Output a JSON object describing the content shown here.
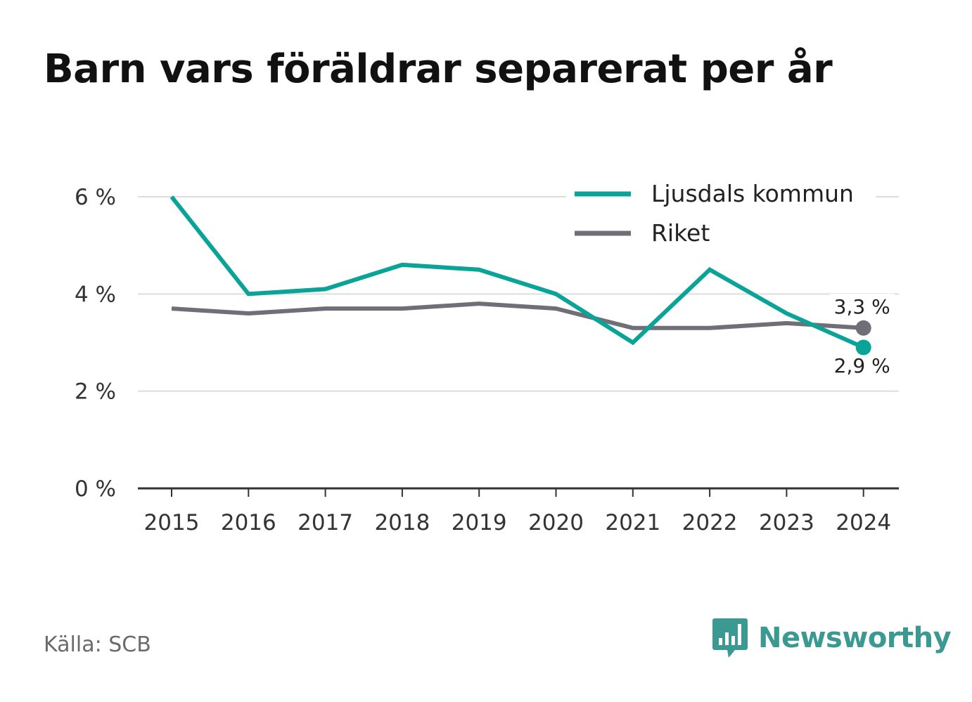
{
  "title": "Barn vars föräldrar separerat per år",
  "source": "Källa: SCB",
  "brand": {
    "name": "Newsworthy",
    "icon": "newsworthy-logo-icon"
  },
  "colors": {
    "ljusdal": "#0aa398",
    "riket": "#706f78",
    "grid": "#dddddd",
    "axis": "#333333",
    "text": "#333333"
  },
  "chart_data": {
    "type": "line",
    "categories": [
      "2015",
      "2016",
      "2017",
      "2018",
      "2019",
      "2020",
      "2021",
      "2022",
      "2023",
      "2024"
    ],
    "series": [
      {
        "name": "Ljusdals kommun",
        "color": "#0aa398",
        "values": [
          6.0,
          4.0,
          4.1,
          4.6,
          4.5,
          4.0,
          3.0,
          4.5,
          3.6,
          2.9
        ],
        "end_label": "2,9 %"
      },
      {
        "name": "Riket",
        "color": "#706f78",
        "values": [
          3.7,
          3.6,
          3.7,
          3.7,
          3.8,
          3.7,
          3.3,
          3.3,
          3.4,
          3.3
        ],
        "end_label": "3,3 %"
      }
    ],
    "yticks": [
      0,
      2,
      4,
      6
    ],
    "ytick_labels": [
      "0 %",
      "2 %",
      "4 %",
      "6 %"
    ],
    "ylim": [
      0,
      6
    ],
    "grid": true,
    "legend_position": "top-right"
  }
}
